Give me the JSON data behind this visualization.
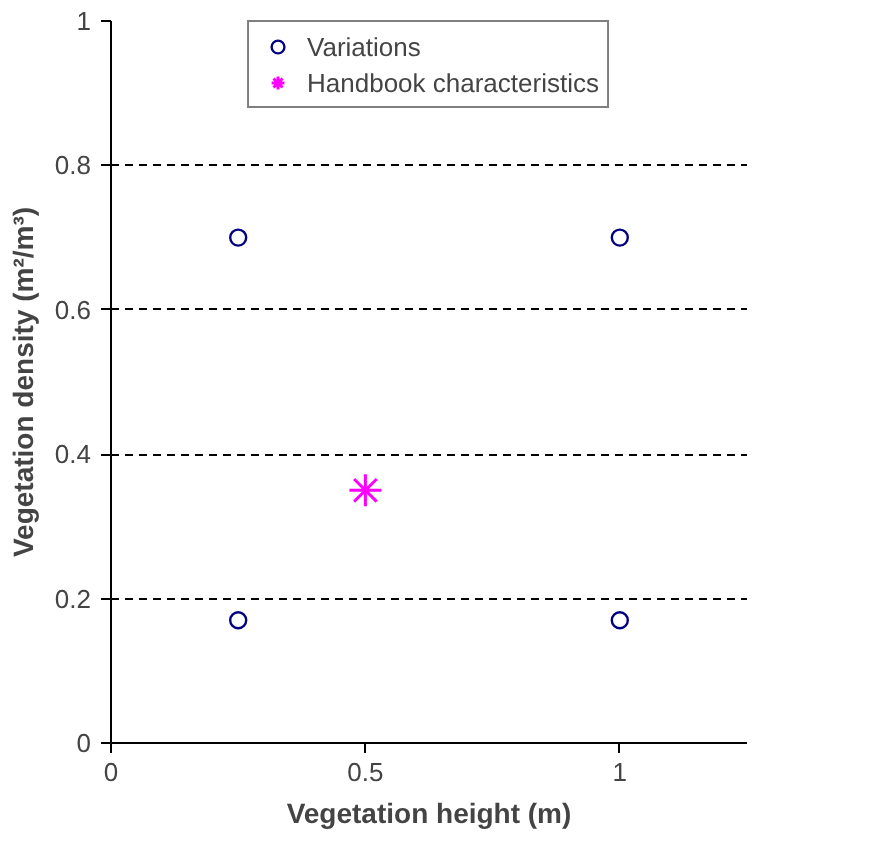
{
  "chart_data": {
    "type": "scatter",
    "xlabel": "Vegetation height (m)",
    "ylabel": "Vegetation density (m²/m³)",
    "xlim": [
      0,
      1.25
    ],
    "xticks": [
      0,
      0.5,
      1
    ],
    "ylim": [
      0,
      1
    ],
    "yticks": [
      0,
      0.2,
      0.4,
      0.6,
      0.8,
      1
    ],
    "grid": "y",
    "legend": "top",
    "series": [
      {
        "name": "Variations",
        "color": "#000080",
        "marker": "circle",
        "x": [
          0.25,
          0.25,
          1,
          1
        ],
        "values": [
          0.7,
          0.17,
          0.7,
          0.17
        ]
      },
      {
        "name": "Handbook characteristics",
        "color": "#ff00ff",
        "marker": "cross",
        "x": [
          0.5
        ],
        "values": [
          0.35
        ]
      }
    ]
  }
}
